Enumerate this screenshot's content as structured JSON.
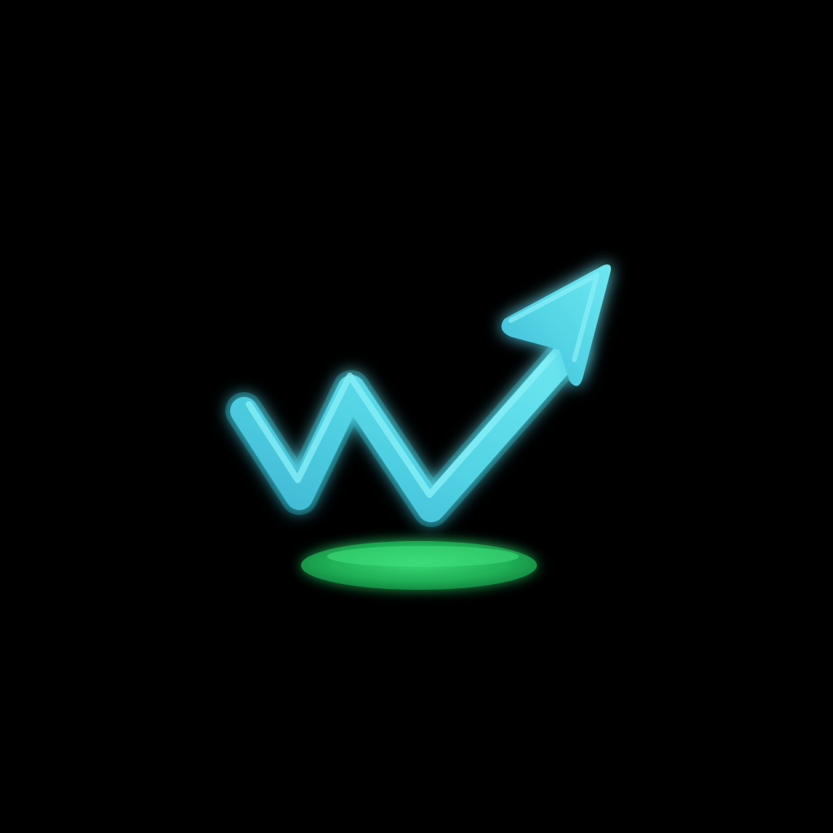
{
  "icon": {
    "name": "trending-up-arrow-icon",
    "description_colors": {
      "background": "#000000",
      "arrow_main": "#4fd4e2",
      "arrow_highlight": "#8af0f7",
      "arrow_glow": "#29e4f2",
      "base_main": "#1fae55",
      "base_highlight": "#3fe07b",
      "base_glow": "#11d46a"
    }
  }
}
